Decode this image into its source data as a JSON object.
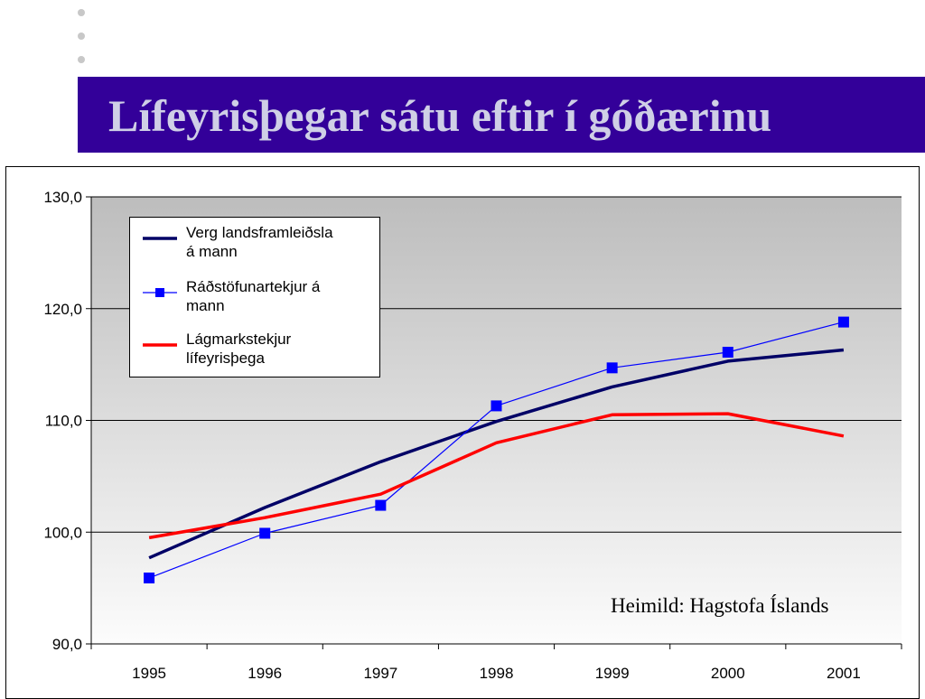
{
  "slide": {
    "title": "Lífeyrisþegar sátu eftir í góðærinu",
    "title_bar_color": "#330099",
    "title_text_color": "#cfcfe6"
  },
  "source_note": "Heimild: Hagstofa Íslands",
  "chart_data": {
    "type": "line",
    "categories": [
      "1995",
      "1996",
      "1997",
      "1998",
      "1999",
      "2000",
      "2001"
    ],
    "series": [
      {
        "name": "Verg landsframleiðsla á mann",
        "name_lines": [
          "Verg landsframleiðsla",
          "á mann"
        ],
        "color": "#000066",
        "marker": "none",
        "values": [
          97.7,
          102.2,
          106.3,
          109.9,
          113.0,
          115.3,
          116.3
        ]
      },
      {
        "name": "Ráðstöfunartekjur á mann",
        "name_lines": [
          "Ráðstöfunartekjur á",
          "mann"
        ],
        "color": "#0000ff",
        "marker": "square",
        "values": [
          95.9,
          99.9,
          102.4,
          111.3,
          114.7,
          116.1,
          118.8
        ]
      },
      {
        "name": "Lágmarkstekjur lífeyrisþega",
        "name_lines": [
          "Lágmarkstekjur",
          "lífeyrisþega"
        ],
        "color": "#ff0000",
        "marker": "none",
        "values": [
          99.5,
          101.3,
          103.4,
          108.0,
          110.5,
          110.6,
          108.6
        ]
      }
    ],
    "ylim": [
      90,
      130
    ],
    "y_ticks": [
      "90,0",
      "100,0",
      "110,0",
      "120,0",
      "130,0"
    ],
    "grid": true,
    "legend_position": "top-left"
  }
}
